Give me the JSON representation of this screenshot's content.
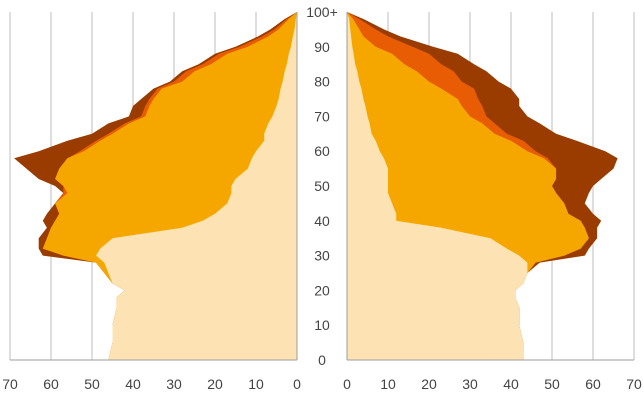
{
  "chart_data": {
    "type": "area",
    "x_categories_label_positions": [
      0,
      10,
      20,
      30,
      40,
      50,
      60,
      70,
      80,
      90,
      100
    ],
    "age_tick_labels": [
      "0",
      "10",
      "20",
      "30",
      "40",
      "50",
      "60",
      "70",
      "80",
      "90",
      "100+"
    ],
    "x_tick_values_left": [
      70,
      60,
      50,
      40,
      30,
      20,
      10,
      0
    ],
    "x_tick_values_right": [
      0,
      10,
      20,
      30,
      40,
      50,
      60,
      70
    ],
    "x_tick_labels_left": [
      "70",
      "60",
      "50",
      "40",
      "30",
      "20",
      "10",
      "0"
    ],
    "x_tick_labels_right": [
      "0",
      "10",
      "20",
      "30",
      "40",
      "50",
      "60",
      "70"
    ],
    "xlim": [
      0,
      70
    ],
    "ylim": [
      0,
      100
    ],
    "grid": true,
    "series_colors": [
      "#FDE3B3",
      "#F5A700",
      "#E85D04",
      "#9A3C00"
    ],
    "ages": [
      0,
      5,
      10,
      15,
      18,
      19,
      20,
      22,
      25,
      28,
      30,
      32,
      35,
      38,
      40,
      42,
      45,
      48,
      50,
      52,
      55,
      58,
      60,
      63,
      65,
      68,
      70,
      73,
      75,
      78,
      80,
      83,
      85,
      88,
      90,
      93,
      95,
      98,
      100
    ],
    "left_series": [
      {
        "values": [
          46,
          45,
          45,
          44,
          44,
          43,
          42,
          45,
          46,
          47,
          49,
          48,
          45,
          28,
          23,
          20,
          17,
          16,
          16,
          15,
          12,
          11,
          10,
          8,
          8,
          7,
          6,
          5,
          4.5,
          4,
          3.5,
          3,
          2.5,
          2,
          1.5,
          1,
          0.6,
          0.3,
          0
        ]
      },
      {
        "values": [
          46,
          45,
          45,
          44,
          44,
          43,
          42,
          45,
          47,
          49,
          57,
          62,
          61,
          60,
          59,
          58,
          59,
          56,
          57,
          59,
          58,
          56,
          52,
          48,
          45,
          41,
          37,
          36,
          35,
          33,
          28,
          25,
          21,
          17,
          12,
          7,
          4.5,
          2,
          0
        ]
      },
      {
        "values": [
          46,
          45,
          45,
          44,
          44,
          43,
          42,
          45,
          47,
          49,
          57,
          62,
          61,
          60,
          59,
          58,
          59,
          57,
          57,
          59,
          58,
          56,
          53,
          49,
          46,
          42,
          38,
          37,
          36,
          34,
          30,
          27,
          23,
          19,
          14,
          8.5,
          5.5,
          2.5,
          0
        ]
      },
      {
        "values": [
          46,
          45,
          45,
          44,
          44,
          43,
          42,
          45,
          47,
          49,
          62,
          63,
          63,
          61,
          62,
          61,
          59,
          57,
          59,
          63,
          66,
          69,
          63,
          56,
          50,
          46,
          41,
          40,
          38,
          35,
          31,
          28,
          24,
          20,
          15,
          9.5,
          6.5,
          3,
          0
        ]
      }
    ],
    "right_series": [
      {
        "values": [
          43,
          43,
          42,
          42,
          41,
          41,
          41,
          43,
          44,
          44,
          42,
          39,
          35,
          23,
          12,
          12,
          11,
          10,
          10,
          10,
          10,
          9,
          8,
          7,
          6,
          5.5,
          5,
          4.5,
          4,
          3.5,
          3,
          2.5,
          2,
          1.6,
          1.3,
          1,
          0.8,
          0.5,
          0
        ]
      },
      {
        "values": [
          43,
          43,
          42,
          42,
          41,
          41,
          41,
          43,
          44,
          46,
          53,
          57,
          59,
          58,
          57,
          54,
          53,
          51,
          50,
          51,
          51,
          48,
          44,
          40,
          36,
          33,
          30,
          28,
          27,
          23,
          20,
          17,
          14,
          11,
          7,
          4,
          3,
          1.5,
          0
        ]
      },
      {
        "values": [
          43,
          43,
          42,
          42,
          41,
          41,
          41,
          43,
          44,
          46,
          53,
          57,
          59,
          58,
          57,
          54,
          53,
          51,
          50,
          51,
          51,
          49,
          46,
          43,
          39,
          36,
          34,
          33,
          32,
          31,
          28,
          26,
          23,
          20,
          16,
          10,
          7,
          3,
          0
        ]
      },
      {
        "values": [
          43,
          43,
          42,
          42,
          41,
          41,
          41,
          43,
          44,
          47,
          58,
          59,
          61,
          61,
          62,
          60,
          58,
          59,
          60,
          62,
          65,
          66,
          63,
          56,
          51,
          47,
          44,
          42,
          42,
          40,
          37,
          34,
          31,
          27,
          21,
          13,
          9,
          4,
          0
        ]
      }
    ]
  }
}
